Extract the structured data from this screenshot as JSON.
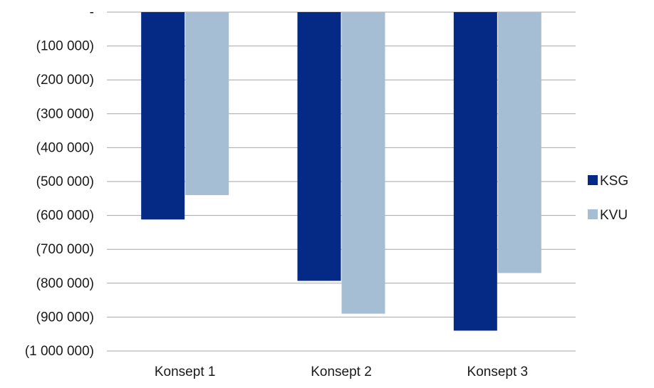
{
  "chart_data": {
    "type": "bar",
    "title": "",
    "xlabel": "",
    "ylabel": "",
    "categories": [
      "Konsept 1",
      "Konsept 2",
      "Konsept 3"
    ],
    "series": [
      {
        "name": "KSG",
        "color": "#042A86",
        "values": [
          -612000,
          -793000,
          -940000
        ]
      },
      {
        "name": "KVU",
        "color": "#A5BED4",
        "values": [
          -540000,
          -890000,
          -770000
        ]
      }
    ],
    "ylim": [
      -1000000,
      0
    ],
    "yticks": [
      {
        "value": 0,
        "label": "-"
      },
      {
        "value": -100000,
        "label": "(100 000)"
      },
      {
        "value": -200000,
        "label": "(200 000)"
      },
      {
        "value": -300000,
        "label": "(300 000)"
      },
      {
        "value": -400000,
        "label": "(400 000)"
      },
      {
        "value": -500000,
        "label": "(500 000)"
      },
      {
        "value": -600000,
        "label": "(600 000)"
      },
      {
        "value": -700000,
        "label": "(700 000)"
      },
      {
        "value": -800000,
        "label": "(800 000)"
      },
      {
        "value": -900000,
        "label": "(900 000)"
      },
      {
        "value": -1000000,
        "label": "(1 000 000)"
      }
    ],
    "grid": true,
    "gridline_color": "#A6A6A6",
    "legend_position": "right"
  }
}
